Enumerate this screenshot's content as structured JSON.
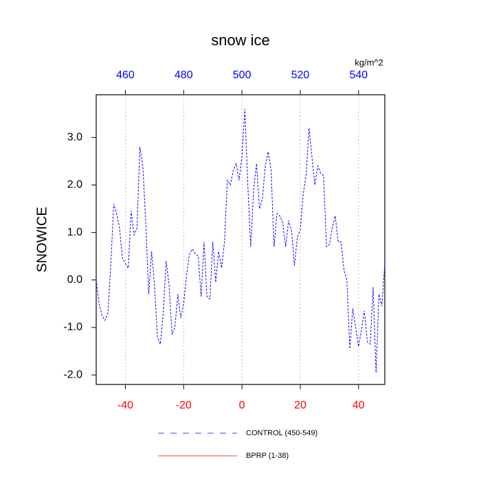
{
  "chart_data": {
    "type": "line",
    "title": "snow ice",
    "ylabel": "SNOWICE",
    "x2label": "kg/m^2",
    "x": [
      -50,
      -49,
      -48,
      -47,
      -46,
      -45,
      -44,
      -43,
      -42,
      -41,
      -40,
      -39,
      -38,
      -37,
      -36,
      -35,
      -34,
      -33,
      -32,
      -31,
      -30,
      -29,
      -28,
      -27,
      -26,
      -25,
      -24,
      -23,
      -22,
      -21,
      -20,
      -19,
      -18,
      -17,
      -16,
      -15,
      -14,
      -13,
      -12,
      -11,
      -10,
      -9,
      -8,
      -7,
      -6,
      -5,
      -4,
      -3,
      -2,
      -1,
      0,
      1,
      2,
      3,
      4,
      5,
      6,
      7,
      8,
      9,
      10,
      11,
      12,
      13,
      14,
      15,
      16,
      17,
      18,
      19,
      20,
      21,
      22,
      23,
      24,
      25,
      26,
      27,
      28,
      29,
      30,
      31,
      32,
      33,
      34,
      35,
      36,
      37,
      38,
      39,
      40,
      41,
      42,
      43,
      44,
      45,
      46,
      47,
      48,
      49
    ],
    "series": [
      {
        "name": "CONTROL (450-549)",
        "color": "#0000ff",
        "dashed": true,
        "values": [
          0.0,
          -0.5,
          -0.75,
          -0.85,
          -0.7,
          0.3,
          1.6,
          1.4,
          1.1,
          0.45,
          0.35,
          0.25,
          1.45,
          0.95,
          1.1,
          2.8,
          2.4,
          1.2,
          -0.3,
          0.6,
          -0.1,
          -1.2,
          -1.35,
          -0.7,
          0.4,
          -0.1,
          -1.15,
          -1.0,
          -0.3,
          -0.8,
          -0.5,
          0.1,
          0.55,
          0.65,
          0.55,
          0.5,
          -0.35,
          0.8,
          -0.35,
          -0.4,
          0.8,
          -0.05,
          0.6,
          0.25,
          0.8,
          2.1,
          2.0,
          2.3,
          2.45,
          2.1,
          2.6,
          3.6,
          2.0,
          0.7,
          1.9,
          2.45,
          1.5,
          1.7,
          2.4,
          2.7,
          2.3,
          0.7,
          1.4,
          1.35,
          1.2,
          0.7,
          1.25,
          1.05,
          0.3,
          0.9,
          1.05,
          1.8,
          2.2,
          3.2,
          2.6,
          2.0,
          2.4,
          2.25,
          2.2,
          0.7,
          0.75,
          1.1,
          1.35,
          0.8,
          0.8,
          0.2,
          0.0,
          -1.45,
          -0.6,
          -1.0,
          -1.4,
          -1.05,
          -0.65,
          -1.3,
          -1.35,
          -0.15,
          -1.95,
          -0.3,
          -0.55,
          0.35
        ]
      },
      {
        "name": "BPRP (1-38)",
        "color": "#ff0000",
        "dashed": false,
        "values": [
          null,
          null,
          null,
          null,
          null,
          null,
          null,
          null,
          null,
          null,
          null,
          null,
          null,
          null,
          null,
          null,
          null,
          null,
          null,
          null,
          null,
          null,
          null,
          null,
          null,
          null,
          null,
          null,
          null,
          null,
          null,
          null,
          null,
          null,
          null,
          null,
          null,
          null,
          null,
          null,
          null,
          null,
          null,
          null,
          null,
          null,
          null,
          null,
          null,
          null,
          null,
          null,
          null,
          null,
          null,
          null,
          null,
          null,
          null,
          null,
          null,
          null,
          null,
          null,
          null,
          null,
          null,
          null,
          null,
          null,
          null,
          null,
          null,
          null,
          null,
          null,
          null,
          null,
          null,
          null,
          null,
          null,
          null,
          null,
          null,
          null,
          null,
          null,
          null,
          null,
          null,
          null,
          null,
          null,
          null,
          null,
          null,
          null,
          null,
          null
        ]
      }
    ],
    "xlim": [
      -50,
      49
    ],
    "xticks": [
      -40,
      -20,
      0,
      20,
      40
    ],
    "xtick_color": "#ff0000",
    "x2lim": [
      450,
      549
    ],
    "x2ticks": [
      460,
      480,
      500,
      520,
      540
    ],
    "x2tick_color": "#0000ff",
    "ylim": [
      -2.2,
      3.9
    ],
    "yticks": [
      {
        "value": -2,
        "label": "-2.0"
      },
      {
        "value": -1,
        "label": "-1.0"
      },
      {
        "value": 0,
        "label": "0.0"
      },
      {
        "value": 1,
        "label": "1.0"
      },
      {
        "value": 2,
        "label": "2.0"
      },
      {
        "value": 3,
        "label": "3.0"
      }
    ],
    "grid": true
  }
}
